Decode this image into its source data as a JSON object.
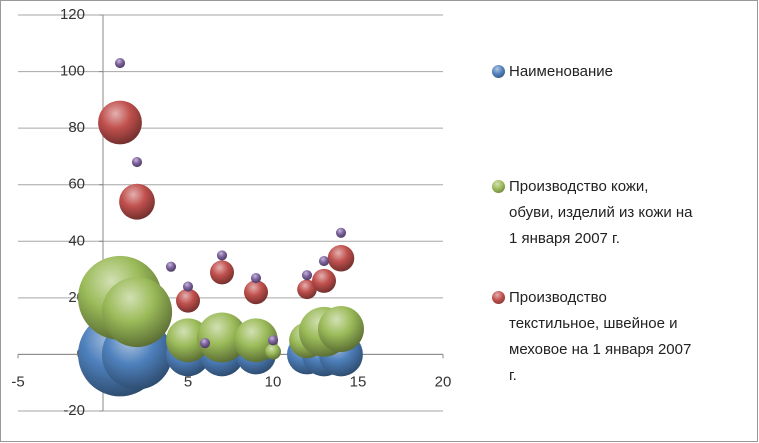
{
  "chart_data": {
    "type": "bubble",
    "xlim": [
      -5,
      20
    ],
    "xticks": [
      -5,
      0,
      5,
      10,
      15,
      20
    ],
    "ylim": [
      -20,
      120
    ],
    "yticks": [
      -20,
      0,
      20,
      40,
      60,
      80,
      100,
      120
    ],
    "grid": true,
    "legend": "right",
    "series": [
      {
        "name": "Наименование",
        "color": "#4f81bd",
        "x": [
          1,
          2,
          5,
          7,
          9,
          12,
          13,
          14
        ],
        "values": [
          0,
          0,
          0,
          0,
          0,
          0,
          0,
          0
        ],
        "sizes": [
          110,
          77,
          30,
          30,
          25,
          25,
          30,
          30
        ]
      },
      {
        "name": "Производство кожи, обуви, изделий из кожи на 1 января 2007 г.",
        "color": "#9bbb59",
        "x": [
          1,
          2,
          5,
          7,
          9,
          10,
          12,
          13,
          14
        ],
        "values": [
          20,
          15,
          5,
          6,
          5,
          1,
          5,
          8,
          9
        ],
        "sizes": [
          110,
          77,
          30,
          39,
          30,
          4,
          20,
          39,
          33
        ]
      },
      {
        "name": "Производство текстильное, швейное и меховое  на 1 января 2007 г.",
        "color": "#c0504d",
        "x": [
          1,
          2,
          5,
          7,
          9,
          12,
          13,
          14
        ],
        "values": [
          82,
          54,
          19,
          29,
          22,
          23,
          26,
          34
        ],
        "sizes": [
          30,
          20,
          9,
          9,
          9,
          6,
          9,
          11
        ]
      },
      {
        "color": "#8064a2",
        "x": [
          1,
          2,
          4,
          5,
          6,
          7,
          9,
          10,
          12,
          13,
          14
        ],
        "values": [
          103,
          68,
          31,
          24,
          4,
          35,
          27,
          5,
          28,
          33,
          43
        ],
        "sizes": [
          1.6,
          1.6,
          1.6,
          1.6,
          1.6,
          1.6,
          1.6,
          1.6,
          1.6,
          1.6,
          1.6
        ]
      }
    ]
  }
}
